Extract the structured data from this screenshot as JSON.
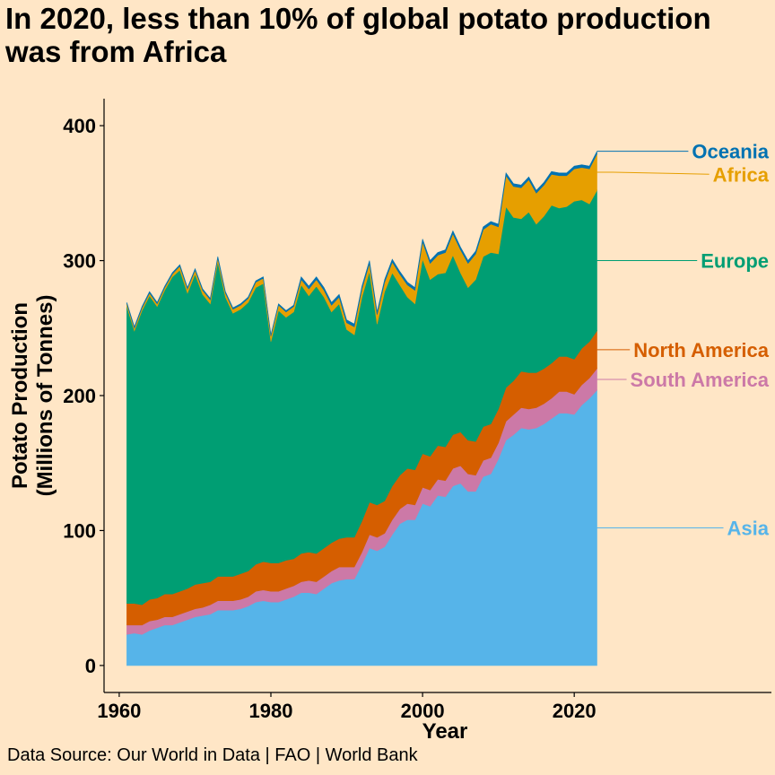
{
  "title": "In 2020, less than 10% of global potato production was from Africa",
  "caption": "Data Source: Our World in Data | FAO | World Bank",
  "colors": {
    "background": "#FFE6C6",
    "Asia": "#56B4E9",
    "South America": "#CC79A7",
    "North America": "#D55E00",
    "Europe": "#009E73",
    "Africa": "#E69F00",
    "Oceania": "#0072B2"
  },
  "chart_data": {
    "type": "area",
    "stacked": true,
    "xlabel": "Year",
    "ylabel_lines": [
      "Potato Production",
      "(Millions of Tonnes)"
    ],
    "xlim": [
      1958,
      2046
    ],
    "ylim": [
      -20,
      420
    ],
    "xticks": [
      1960,
      1980,
      2000,
      2020
    ],
    "yticks": [
      0,
      100,
      200,
      300,
      400
    ],
    "x": [
      1961,
      1962,
      1963,
      1964,
      1965,
      1966,
      1967,
      1968,
      1969,
      1970,
      1971,
      1972,
      1973,
      1974,
      1975,
      1976,
      1977,
      1978,
      1979,
      1980,
      1981,
      1982,
      1983,
      1984,
      1985,
      1986,
      1987,
      1988,
      1989,
      1990,
      1991,
      1992,
      1993,
      1994,
      1995,
      1996,
      1997,
      1998,
      1999,
      2000,
      2001,
      2002,
      2003,
      2004,
      2005,
      2006,
      2007,
      2008,
      2009,
      2010,
      2011,
      2012,
      2013,
      2014,
      2015,
      2016,
      2017,
      2018,
      2019,
      2020,
      2021,
      2022,
      2023
    ],
    "series": [
      {
        "name": "Asia",
        "values": [
          23,
          24,
          23,
          26,
          28,
          30,
          30,
          32,
          34,
          36,
          37,
          38,
          41,
          41,
          41,
          42,
          44,
          47,
          48,
          47,
          47,
          49,
          51,
          54,
          54,
          53,
          57,
          61,
          63,
          64,
          64,
          75,
          87,
          85,
          88,
          97,
          105,
          108,
          108,
          120,
          118,
          126,
          125,
          133,
          135,
          129,
          129,
          140,
          142,
          153,
          167,
          171,
          176,
          175,
          176,
          179,
          183,
          187,
          187,
          186,
          193,
          198,
          204
        ]
      },
      {
        "name": "South America",
        "values": [
          7,
          6,
          7,
          7,
          6,
          6,
          6,
          6,
          6,
          6,
          6,
          7,
          7,
          7,
          7,
          7,
          7,
          8,
          8,
          8,
          8,
          8,
          8,
          8,
          9,
          9,
          9,
          9,
          10,
          9,
          9,
          9,
          10,
          10,
          10,
          11,
          11,
          12,
          11,
          12,
          12,
          12,
          12,
          13,
          13,
          13,
          12,
          12,
          12,
          12,
          14,
          15,
          15,
          15,
          15,
          15,
          15,
          16,
          16,
          15,
          15,
          15,
          16
        ]
      },
      {
        "name": "North America",
        "values": [
          16,
          16,
          15,
          16,
          16,
          17,
          17,
          17,
          17,
          18,
          18,
          17,
          18,
          18,
          18,
          19,
          19,
          20,
          21,
          21,
          21,
          21,
          20,
          21,
          21,
          21,
          21,
          21,
          21,
          22,
          22,
          23,
          24,
          24,
          24,
          25,
          25,
          26,
          26,
          25,
          25,
          25,
          25,
          25,
          25,
          25,
          25,
          25,
          25,
          25,
          25,
          25,
          27,
          27,
          26,
          26,
          26,
          26,
          26,
          26,
          27,
          27,
          28
        ]
      },
      {
        "name": "Europe",
        "values": [
          220,
          202,
          218,
          225,
          216,
          225,
          235,
          238,
          219,
          230,
          214,
          206,
          233,
          207,
          195,
          196,
          199,
          205,
          206,
          164,
          187,
          180,
          183,
          199,
          190,
          198,
          186,
          171,
          174,
          154,
          150,
          166,
          171,
          134,
          155,
          158,
          141,
          127,
          123,
          144,
          131,
          127,
          129,
          133,
          118,
          113,
          120,
          126,
          127,
          115,
          134,
          121,
          113,
          119,
          110,
          113,
          117,
          110,
          111,
          117,
          110,
          102,
          104
        ]
      },
      {
        "name": "Africa",
        "values": [
          2,
          2,
          2,
          2,
          2,
          2,
          2,
          3,
          3,
          3,
          3,
          3,
          3,
          3,
          3,
          3,
          3,
          4,
          4,
          4,
          4,
          4,
          4,
          4,
          5,
          5,
          5,
          5,
          5,
          5,
          6,
          6,
          6,
          7,
          7,
          8,
          8,
          9,
          10,
          13,
          12,
          14,
          15,
          16,
          17,
          18,
          19,
          20,
          21,
          20,
          23,
          23,
          23,
          24,
          23,
          23,
          23,
          24,
          23,
          24,
          24,
          26,
          27
        ]
      },
      {
        "name": "Oceania",
        "values": [
          1,
          1,
          1,
          1,
          1,
          1,
          1,
          1,
          1,
          1,
          1,
          1,
          1,
          1,
          1,
          1,
          1,
          1,
          1,
          1,
          1,
          1,
          1,
          2,
          2,
          2,
          2,
          2,
          2,
          2,
          2,
          2,
          2,
          2,
          2,
          2,
          2,
          2,
          2,
          2,
          2,
          2,
          2,
          2,
          2,
          2,
          2,
          2,
          2,
          2,
          2,
          2,
          2,
          2,
          2,
          2,
          2,
          2,
          2,
          2,
          2,
          2,
          2
        ]
      }
    ],
    "end_labels": [
      "Oceania",
      "Africa",
      "Europe",
      "North America",
      "South America",
      "Asia"
    ]
  }
}
